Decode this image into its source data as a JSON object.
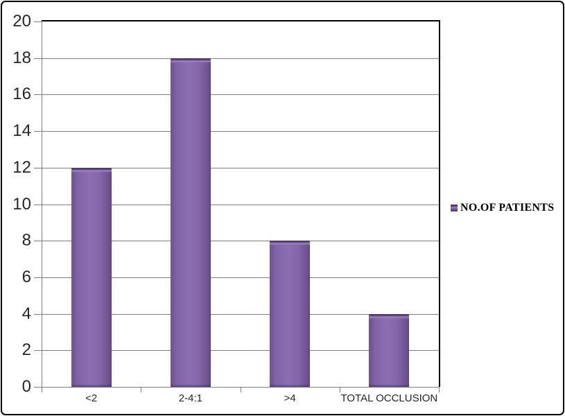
{
  "chart_data": {
    "type": "bar",
    "categories": [
      "<2",
      "2-4:1",
      ">4",
      "TOTAL OCCLUSION"
    ],
    "series": [
      {
        "name": "NO.OF PATIENTS",
        "values": [
          12,
          18,
          8,
          4
        ]
      }
    ],
    "title": "",
    "xlabel": "",
    "ylabel": "",
    "ylim": [
      0,
      20
    ],
    "ytick_step": 2,
    "ytick_labels": [
      "0",
      "2",
      "4",
      "6",
      "8",
      "10",
      "12",
      "14",
      "16",
      "18",
      "20"
    ],
    "grid": true,
    "legend_position": "right"
  },
  "colors": {
    "bar_fill_mid": "#8C6DB2",
    "bar_fill_edge": "#674C85",
    "bar_highlight": "#9E82C2",
    "bar_cap_dark": "#4E3A66",
    "gridline": "#7F7F7F",
    "axis": "#7F7F7F",
    "plot_border": "#000000",
    "frame_border": "#000000",
    "background": "#FFFFFF",
    "label_text": "#262626"
  }
}
